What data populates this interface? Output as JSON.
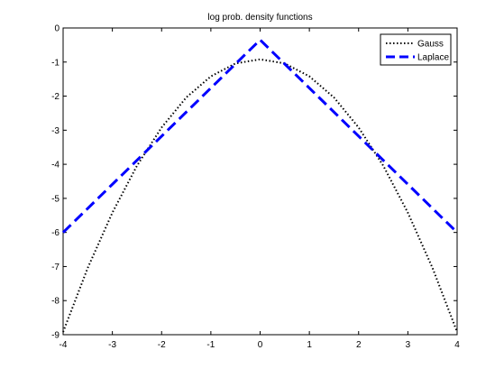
{
  "chart_data": {
    "type": "line",
    "title": "log prob. density functions",
    "xlabel": "",
    "ylabel": "",
    "xlim": [
      -4,
      4
    ],
    "ylim": [
      -9,
      0
    ],
    "xticks": [
      -4,
      -3,
      -2,
      -1,
      0,
      1,
      2,
      3,
      4
    ],
    "yticks": [
      0,
      -1,
      -2,
      -3,
      -4,
      -5,
      -6,
      -7,
      -8,
      -9
    ],
    "grid": false,
    "legend_position": "top-right",
    "series": [
      {
        "name": "Gauss",
        "color": "#000000",
        "style": "dotted",
        "x": [
          -4,
          -3.5,
          -3,
          -2.5,
          -2,
          -1.5,
          -1,
          -0.5,
          0,
          0.5,
          1,
          1.5,
          2,
          2.5,
          3,
          3.5,
          4
        ],
        "y": [
          -8.92,
          -7.04,
          -5.42,
          -4.04,
          -2.92,
          -2.04,
          -1.42,
          -1.04,
          -0.92,
          -1.04,
          -1.42,
          -2.04,
          -2.92,
          -4.04,
          -5.42,
          -7.04,
          -8.92
        ]
      },
      {
        "name": "Laplace",
        "color": "#0000ff",
        "style": "dashed",
        "x": [
          -4,
          0,
          4
        ],
        "y": [
          -6.0,
          -0.35,
          -6.0
        ]
      }
    ]
  }
}
